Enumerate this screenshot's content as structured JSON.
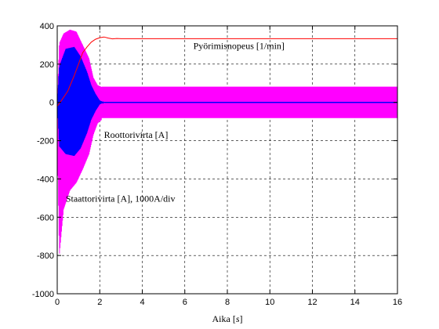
{
  "chart_data": {
    "type": "line",
    "xlabel_prefix": "Aika [",
    "xlabel_unit": "s",
    "xlabel_suffix": "]",
    "xlim": [
      0,
      16
    ],
    "ylim": [
      -1000,
      400
    ],
    "xticks": [
      0,
      2,
      4,
      6,
      8,
      10,
      12,
      14,
      16
    ],
    "yticks": [
      400,
      200,
      0,
      -200,
      -400,
      -600,
      -800,
      -1000
    ],
    "grid": true,
    "annotations": [
      {
        "text": "Pyörimisnopeus [1/min]",
        "x": 6.4,
        "y": 280
      },
      {
        "text": "Roottorivirta [A]",
        "x": 2.2,
        "y": -185
      },
      {
        "text": "Staattorivirta [A], 1000A/div",
        "x": 0.4,
        "y": -520
      }
    ],
    "series": [
      {
        "color": "#ff00ff",
        "startup_envelope": [
          [
            0.0,
            0,
            -150
          ],
          [
            0.1,
            310,
            -800
          ],
          [
            0.3,
            360,
            -560
          ],
          [
            0.6,
            380,
            -460
          ],
          [
            0.9,
            370,
            -420
          ],
          [
            1.2,
            300,
            -350
          ],
          [
            1.5,
            230,
            -270
          ],
          [
            1.7,
            130,
            -170
          ],
          [
            1.9,
            90,
            -110
          ],
          [
            2.1,
            80,
            -90
          ]
        ],
        "steady_amplitude": 82
      },
      {
        "color": "#0000ff",
        "startup_envelope": [
          [
            0.0,
            0,
            0
          ],
          [
            0.1,
            190,
            -230
          ],
          [
            0.4,
            280,
            -270
          ],
          [
            0.8,
            290,
            -280
          ],
          [
            1.1,
            240,
            -240
          ],
          [
            1.4,
            160,
            -160
          ],
          [
            1.6,
            90,
            -90
          ],
          [
            1.8,
            45,
            -45
          ],
          [
            2.0,
            10,
            -10
          ],
          [
            2.2,
            0,
            0
          ]
        ],
        "steady_amplitude": 0
      },
      {
        "color": "#ff0000",
        "points": [
          [
            0.0,
            -20
          ],
          [
            0.2,
            10
          ],
          [
            0.5,
            60
          ],
          [
            0.8,
            140
          ],
          [
            1.0,
            200
          ],
          [
            1.2,
            260
          ],
          [
            1.4,
            290
          ],
          [
            1.6,
            315
          ],
          [
            1.8,
            330
          ],
          [
            2.0,
            338
          ],
          [
            2.2,
            342
          ],
          [
            2.4,
            336
          ],
          [
            2.6,
            332
          ],
          [
            2.8,
            334
          ],
          [
            3.0,
            333
          ],
          [
            16.0,
            333
          ]
        ]
      }
    ]
  }
}
